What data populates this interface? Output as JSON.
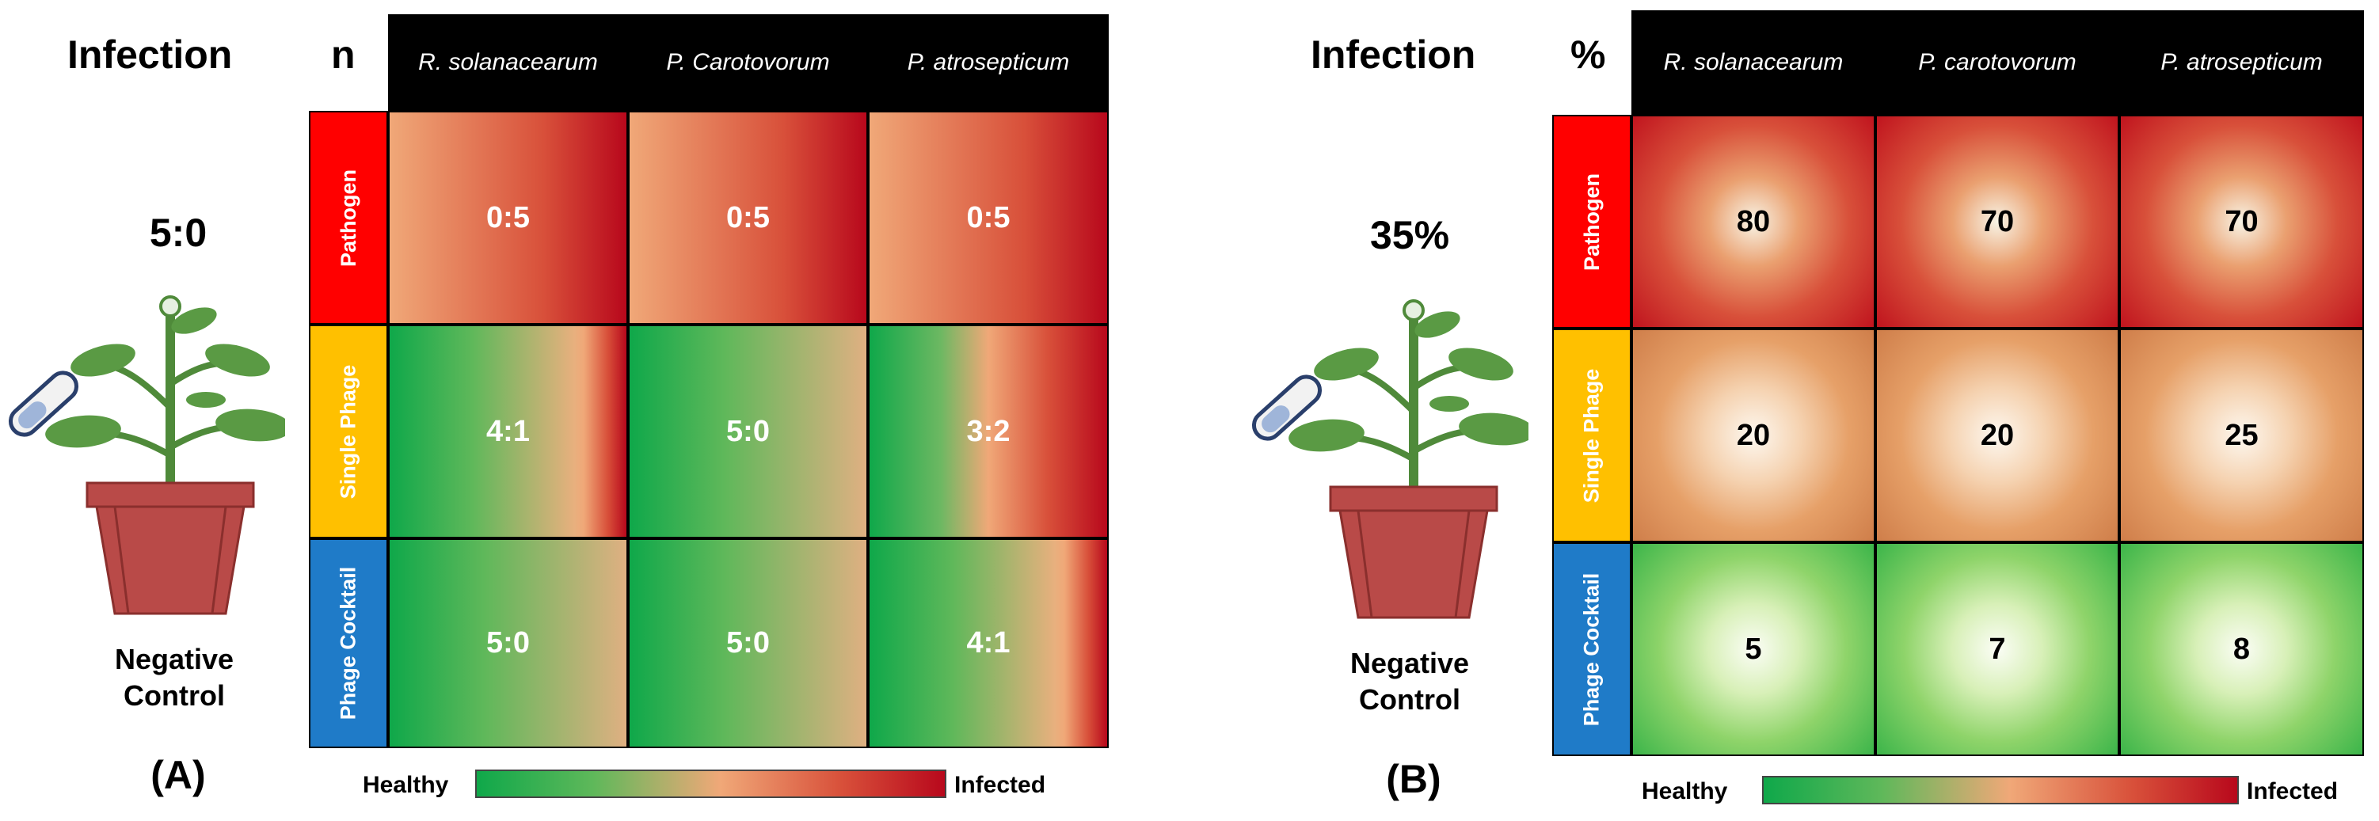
{
  "panelA": {
    "left_title": "Infection",
    "corner_label": "n",
    "control_value": "5:0",
    "control_label_line1": "Negative",
    "control_label_line2": "Control",
    "panel_label": "(A)",
    "legend_left": "Healthy",
    "legend_right": "Infected"
  },
  "panelB": {
    "left_title": "Infection",
    "corner_label": "%",
    "control_value": "35%",
    "control_label_line1": "Negative",
    "control_label_line2": "Control",
    "panel_label": "(B)",
    "legend_left": "Healthy",
    "legend_right": "Infected"
  },
  "colors": {
    "pathogen": "#ff0000",
    "single_phage": "#ffc000",
    "phage_cocktail": "#1f7bc8",
    "healthy": "#0fa84a",
    "infected": "#b8081c"
  },
  "chart_data": [
    {
      "type": "table",
      "title": "Infection n",
      "columns": [
        "R. solanacearum",
        "P. Carotovorum",
        "P. atrosepticum"
      ],
      "rows": [
        {
          "label": "Pathogen",
          "values": [
            "0:5",
            "0:5",
            "0:5"
          ]
        },
        {
          "label": "Single Phage",
          "values": [
            "4:1",
            "5:0",
            "3:2"
          ]
        },
        {
          "label": "Phage Cocktail",
          "values": [
            "5:0",
            "5:0",
            "4:1"
          ]
        }
      ],
      "scale": [
        "Healthy",
        "Infected"
      ]
    },
    {
      "type": "heatmap",
      "title": "Infection %",
      "columns": [
        "R. solanacearum",
        "P. carotovorum",
        "P. atrosepticum"
      ],
      "rows": [
        {
          "label": "Pathogen",
          "values": [
            80,
            70,
            70
          ]
        },
        {
          "label": "Single Phage",
          "values": [
            20,
            20,
            25
          ]
        },
        {
          "label": "Phage Cocktail",
          "values": [
            5,
            7,
            8
          ]
        }
      ],
      "scale": [
        "Healthy",
        "Infected"
      ]
    }
  ]
}
